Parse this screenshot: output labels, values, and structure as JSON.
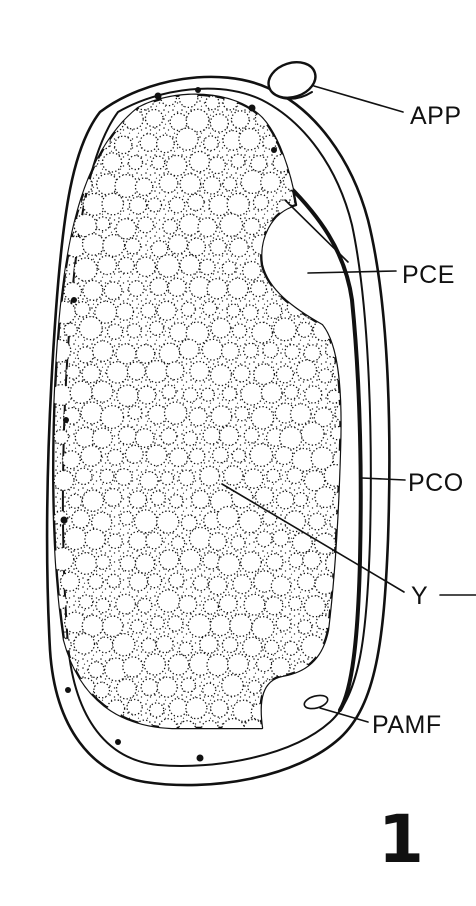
{
  "figure": {
    "number": "1",
    "labels": {
      "app": "APP",
      "pce": "PCE",
      "pco": "PCO",
      "y": "Y",
      "pamf": "PAMF"
    }
  },
  "colors": {
    "ink": "#111111",
    "paper": "#ffffff"
  }
}
